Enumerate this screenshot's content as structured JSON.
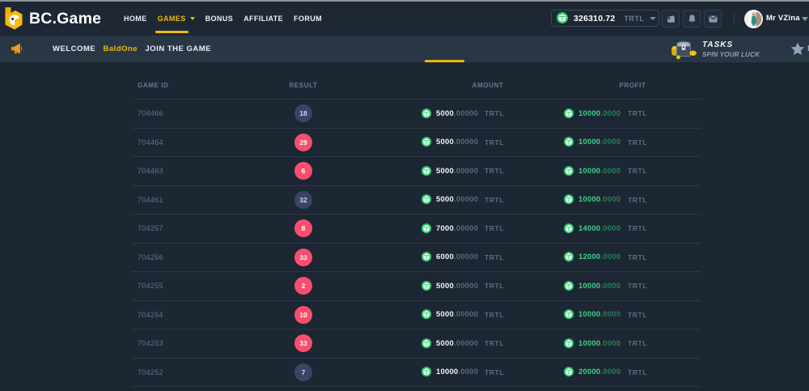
{
  "brand": "BC.Game",
  "nav": [
    {
      "label": "HOME",
      "active": false
    },
    {
      "label": "GAMES",
      "active": true,
      "caret": true
    },
    {
      "label": "BONUS",
      "active": false
    },
    {
      "label": "AFFILIATE",
      "active": false
    },
    {
      "label": "FORUM",
      "active": false
    }
  ],
  "balance": {
    "amount": "326310.72",
    "currency": "TRTL"
  },
  "user": {
    "name": "Mr VZina"
  },
  "announcement": {
    "welcome": "WELCOME",
    "username": "BaldOne",
    "message": "JOIN THE GAME",
    "tasks_title": "TASKS",
    "tasks_subtitle": "SPIN YOUR LUCK",
    "favorites_partial": "F"
  },
  "chart_data": {
    "type": "table",
    "title": "",
    "headers": [
      "GAME ID",
      "RESULT",
      "AMOUNT",
      "PROFIT"
    ],
    "currency": "TRTL",
    "rows": [
      {
        "game_id": "704466",
        "result": "18",
        "result_color": "blue",
        "amount": "5000.00000",
        "profit": "10000.0000"
      },
      {
        "game_id": "704464",
        "result": "29",
        "result_color": "red",
        "amount": "5000.00000",
        "profit": "10000.0000"
      },
      {
        "game_id": "704463",
        "result": "6",
        "result_color": "red",
        "amount": "5000.00000",
        "profit": "10000.0000"
      },
      {
        "game_id": "704461",
        "result": "32",
        "result_color": "blue",
        "amount": "5000.00000",
        "profit": "10000.0000"
      },
      {
        "game_id": "704257",
        "result": "8",
        "result_color": "red",
        "amount": "7000.00000",
        "profit": "14000.0000"
      },
      {
        "game_id": "704256",
        "result": "33",
        "result_color": "red",
        "amount": "6000.00000",
        "profit": "12000.0000"
      },
      {
        "game_id": "704255",
        "result": "2",
        "result_color": "red",
        "amount": "5000.00000",
        "profit": "10000.0000"
      },
      {
        "game_id": "704254",
        "result": "10",
        "result_color": "red",
        "amount": "5000.00000",
        "profit": "10000.0000"
      },
      {
        "game_id": "704253",
        "result": "33",
        "result_color": "red",
        "amount": "5000.00000",
        "profit": "10000.0000"
      },
      {
        "game_id": "704252",
        "result": "7",
        "result_color": "blue",
        "amount": "10000.0000",
        "profit": "20000.0000"
      }
    ]
  },
  "colors": {
    "accent_yellow": "#f0b90b",
    "badge_red": "#fa4e6e",
    "badge_blue": "#3b4466",
    "profit_green": "#3ecf85",
    "coin_green": "#23c168"
  }
}
